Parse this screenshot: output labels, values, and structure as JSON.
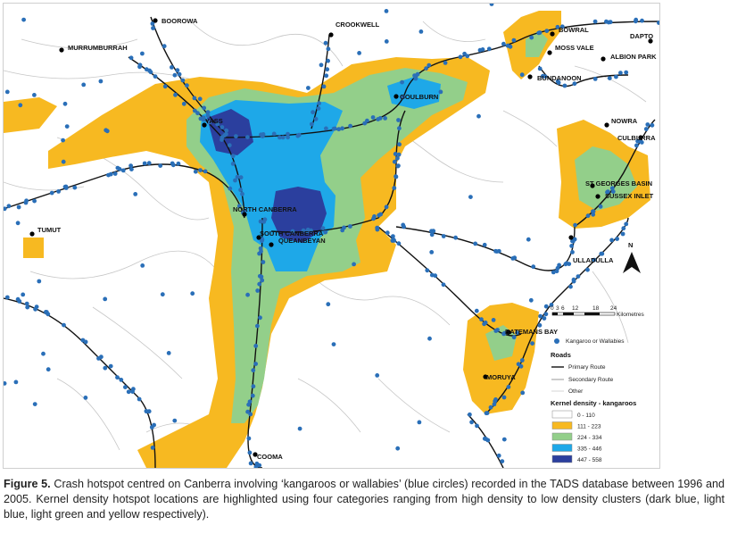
{
  "towns": [
    {
      "name": "BOOROWA"
    },
    {
      "name": "CROOKWELL"
    },
    {
      "name": "MURRUMBURRAH"
    },
    {
      "name": "BOWRAL"
    },
    {
      "name": "DAPTO"
    },
    {
      "name": "MOSS VALE"
    },
    {
      "name": "ALBION PARK"
    },
    {
      "name": "BUNDANOON"
    },
    {
      "name": "GOULBURN"
    },
    {
      "name": "YASS"
    },
    {
      "name": "NOWRA"
    },
    {
      "name": "CULBURRA"
    },
    {
      "name": "ST GEORGES BASIN"
    },
    {
      "name": "SUSSEX INLET"
    },
    {
      "name": "NORTH CANBERRA"
    },
    {
      "name": "TUMUT"
    },
    {
      "name": "SOUTH CANBERRA"
    },
    {
      "name": "QUEANBEYAN"
    },
    {
      "name": "ULLADULLA"
    },
    {
      "name": "BATEMANS BAY"
    },
    {
      "name": "MORUYA"
    },
    {
      "name": "COOMA"
    }
  ],
  "north_arrow": {
    "label": "N"
  },
  "scale_bar": {
    "ticks": [
      "0",
      "3",
      "6",
      "12",
      "18",
      "24"
    ],
    "unit": "Kilometres"
  },
  "legend": {
    "point_label": "Kangaroo or Wallabies",
    "roads_title": "Roads",
    "roads": [
      {
        "label": "Primary Route"
      },
      {
        "label": "Secondary Route"
      },
      {
        "label": "Other"
      }
    ],
    "density_title": "Kernel density - kangaroos",
    "classes": [
      {
        "label": "0 - 110",
        "color": "#ffffff"
      },
      {
        "label": "111 - 223",
        "color": "#f7b921"
      },
      {
        "label": "224 - 334",
        "color": "#93cf8a"
      },
      {
        "label": "335 - 446",
        "color": "#1ea8e8"
      },
      {
        "label": "447 - 558",
        "color": "#2b3f9e"
      }
    ]
  },
  "caption": {
    "label": "Figure 5.",
    "text": " Crash hotspot centred on Canberra involving ‘kangaroos or wallabies’ (blue circles) recorded in the TADS database between 1996 and 2005. Kernel density hotspot locations are highlighted using four categories ranging from high density to low density clusters (dark blue, light blue, light green and yellow respectively)."
  },
  "colors": {
    "yellow": "#f7b921",
    "green": "#93cf8a",
    "light_blue": "#1ea8e8",
    "dark_blue": "#2b3f9e",
    "crash_point": "#2a6fb8",
    "road": "#111111",
    "minor_road": "#bfbfbf"
  }
}
